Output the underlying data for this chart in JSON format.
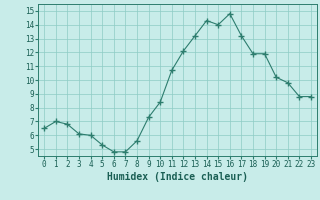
{
  "x": [
    0,
    1,
    2,
    3,
    4,
    5,
    6,
    7,
    8,
    9,
    10,
    11,
    12,
    13,
    14,
    15,
    16,
    17,
    18,
    19,
    20,
    21,
    22,
    23
  ],
  "y": [
    6.5,
    7.0,
    6.8,
    6.1,
    6.0,
    5.3,
    4.8,
    4.8,
    5.6,
    7.3,
    8.4,
    10.7,
    12.1,
    13.2,
    14.3,
    14.0,
    14.8,
    13.2,
    11.9,
    11.9,
    10.2,
    9.8,
    8.8,
    8.8
  ],
  "line_color": "#2d7d6e",
  "marker": "+",
  "marker_size": 4,
  "background_color": "#c8ece9",
  "grid_color": "#8eccc5",
  "xlabel": "Humidex (Indice chaleur)",
  "xlim": [
    -0.5,
    23.5
  ],
  "ylim": [
    4.5,
    15.5
  ],
  "xticks": [
    0,
    1,
    2,
    3,
    4,
    5,
    6,
    7,
    8,
    9,
    10,
    11,
    12,
    13,
    14,
    15,
    16,
    17,
    18,
    19,
    20,
    21,
    22,
    23
  ],
  "yticks": [
    5,
    6,
    7,
    8,
    9,
    10,
    11,
    12,
    13,
    14,
    15
  ],
  "tick_label_fontsize": 5.5,
  "xlabel_fontsize": 7,
  "tick_color": "#2d7d6e",
  "label_color": "#1a5f54"
}
